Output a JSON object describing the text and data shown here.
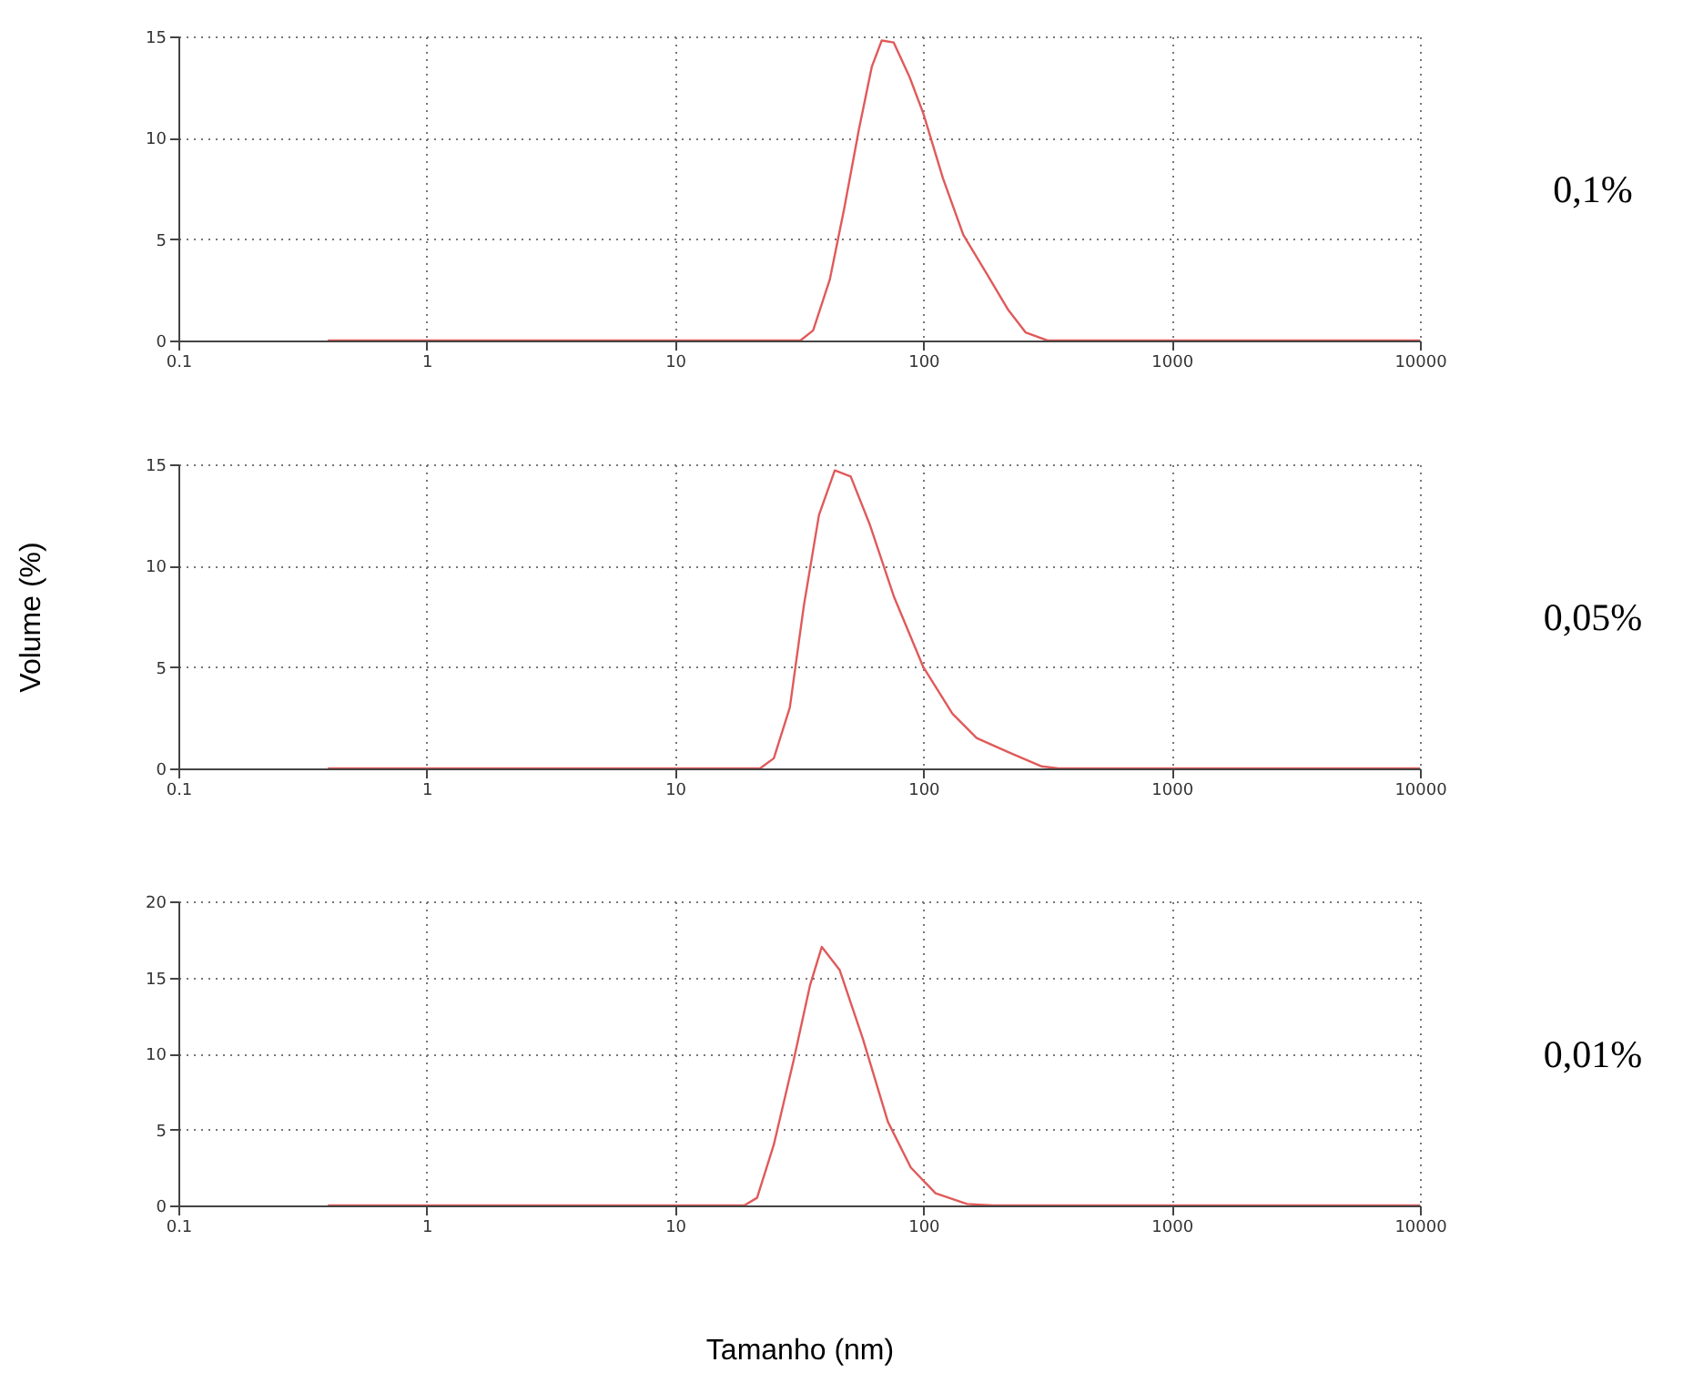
{
  "chart_data": [
    {
      "type": "line",
      "log": "x",
      "grid": true,
      "xlim": [
        0.1,
        10000
      ],
      "xticks": [
        0.1,
        1,
        10,
        100,
        1000,
        10000
      ],
      "ylim": [
        0,
        15
      ],
      "yticks": [
        0,
        5,
        10,
        15
      ],
      "annotations": [
        "0,1%"
      ],
      "series": [
        {
          "color": "#e05a5a",
          "x": [
            0.4,
            32,
            36,
            42,
            48,
            55,
            62,
            68,
            76,
            88,
            100,
            120,
            145,
            180,
            220,
            258,
            316,
            10000
          ],
          "values": [
            0,
            0,
            0.5,
            3,
            6.5,
            10.4,
            13.5,
            14.8,
            14.7,
            13,
            11.2,
            8,
            5.2,
            3.3,
            1.5,
            0.4,
            0,
            0
          ]
        }
      ]
    },
    {
      "type": "line",
      "log": "x",
      "grid": true,
      "ylabel": "Volume (%)",
      "xlim": [
        0.1,
        10000
      ],
      "xticks": [
        0.1,
        1,
        10,
        100,
        1000,
        10000
      ],
      "ylim": [
        0,
        15
      ],
      "yticks": [
        0,
        5,
        10,
        15
      ],
      "annotations": [
        "0,05%"
      ],
      "series": [
        {
          "color": "#e05a5a",
          "x": [
            0.4,
            22,
            25,
            29,
            33,
            38,
            44,
            51,
            61,
            76,
            100,
            131,
            164,
            220,
            300,
            350,
            10000
          ],
          "values": [
            0,
            0,
            0.5,
            3,
            8,
            12.5,
            14.7,
            14.4,
            12,
            8.5,
            5,
            2.7,
            1.5,
            0.8,
            0.1,
            0,
            0
          ]
        }
      ]
    },
    {
      "type": "line",
      "log": "x",
      "grid": true,
      "xlabel": "Tamanho (nm)",
      "xlim": [
        0.1,
        10000
      ],
      "xticks": [
        0.1,
        1,
        10,
        100,
        1000,
        10000
      ],
      "ylim": [
        0,
        20
      ],
      "yticks": [
        0,
        5,
        10,
        15,
        20
      ],
      "annotations": [
        "0,01%"
      ],
      "series": [
        {
          "color": "#e05a5a",
          "x": [
            0.4,
            19,
            21.4,
            25,
            30,
            35,
            39,
            46,
            57,
            72,
            89,
            112,
            150,
            190,
            10000
          ],
          "values": [
            0,
            0,
            0.5,
            4,
            9.5,
            14.5,
            17,
            15.5,
            11,
            5.5,
            2.5,
            0.8,
            0.1,
            0,
            0
          ]
        }
      ]
    }
  ]
}
